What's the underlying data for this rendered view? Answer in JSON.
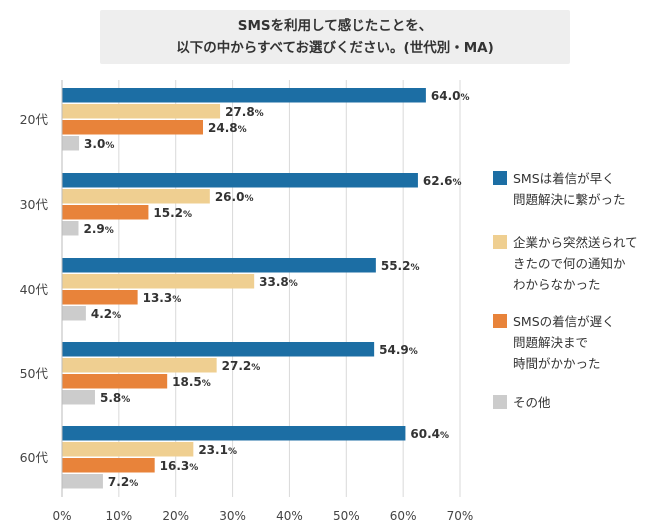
{
  "title": {
    "line1": "SMSを利用して感じたことを、",
    "line2": "以下の中からすべてお選びください。(世代別・MA)"
  },
  "chart_data": {
    "type": "bar",
    "orientation": "horizontal",
    "categories": [
      "20代",
      "30代",
      "40代",
      "50代",
      "60代"
    ],
    "series": [
      {
        "name": "SMSは着信が早く\n問題解決に繋がった",
        "color": "#1c6ea4",
        "values": [
          64.0,
          62.6,
          55.2,
          54.9,
          60.4
        ]
      },
      {
        "name": "企業から突然送られて\nきたので何の通知か\nわからなかった",
        "color": "#efcf91",
        "values": [
          27.8,
          26.0,
          33.8,
          27.2,
          23.1
        ]
      },
      {
        "name": "SMSの着信が遅く\n問題解決まで\n時間がかかった",
        "color": "#e8833a",
        "values": [
          24.8,
          15.2,
          13.3,
          18.5,
          16.3
        ]
      },
      {
        "name": "その他",
        "color": "#cccccc",
        "values": [
          3.0,
          2.9,
          4.2,
          5.8,
          7.2
        ]
      }
    ],
    "xlim": [
      0,
      70
    ],
    "xticks": [
      "0%",
      "10%",
      "20%",
      "30%",
      "40%",
      "50%",
      "60%",
      "70%"
    ],
    "value_suffix": "%",
    "grid": true,
    "legend_position": "right"
  }
}
